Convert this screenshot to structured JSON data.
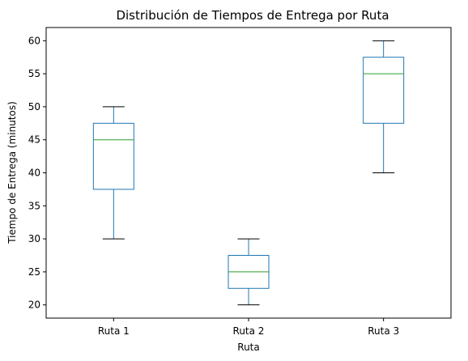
{
  "chart_data": {
    "type": "box",
    "title": "Distribución de Tiempos de Entrega por Ruta",
    "xlabel": "Ruta",
    "ylabel": "Tiempo de Entrega (minutos)",
    "categories": [
      "Ruta 1",
      "Ruta 2",
      "Ruta 3"
    ],
    "boxes": [
      {
        "category": "Ruta 1",
        "whisker_low": 30,
        "q1": 37.5,
        "median": 45,
        "q3": 47.5,
        "whisker_high": 50
      },
      {
        "category": "Ruta 2",
        "whisker_low": 20,
        "q1": 22.5,
        "median": 25,
        "q3": 27.5,
        "whisker_high": 30
      },
      {
        "category": "Ruta 3",
        "whisker_low": 40,
        "q1": 47.5,
        "median": 55,
        "q3": 57.5,
        "whisker_high": 60
      }
    ],
    "yticks": [
      20,
      25,
      30,
      35,
      40,
      45,
      50,
      55,
      60
    ],
    "ylim": [
      18,
      62
    ],
    "grid": false,
    "colors": {
      "box": "#1f77b4",
      "median": "#2ca02c",
      "caps": "#000000",
      "axes": "#000000"
    }
  }
}
